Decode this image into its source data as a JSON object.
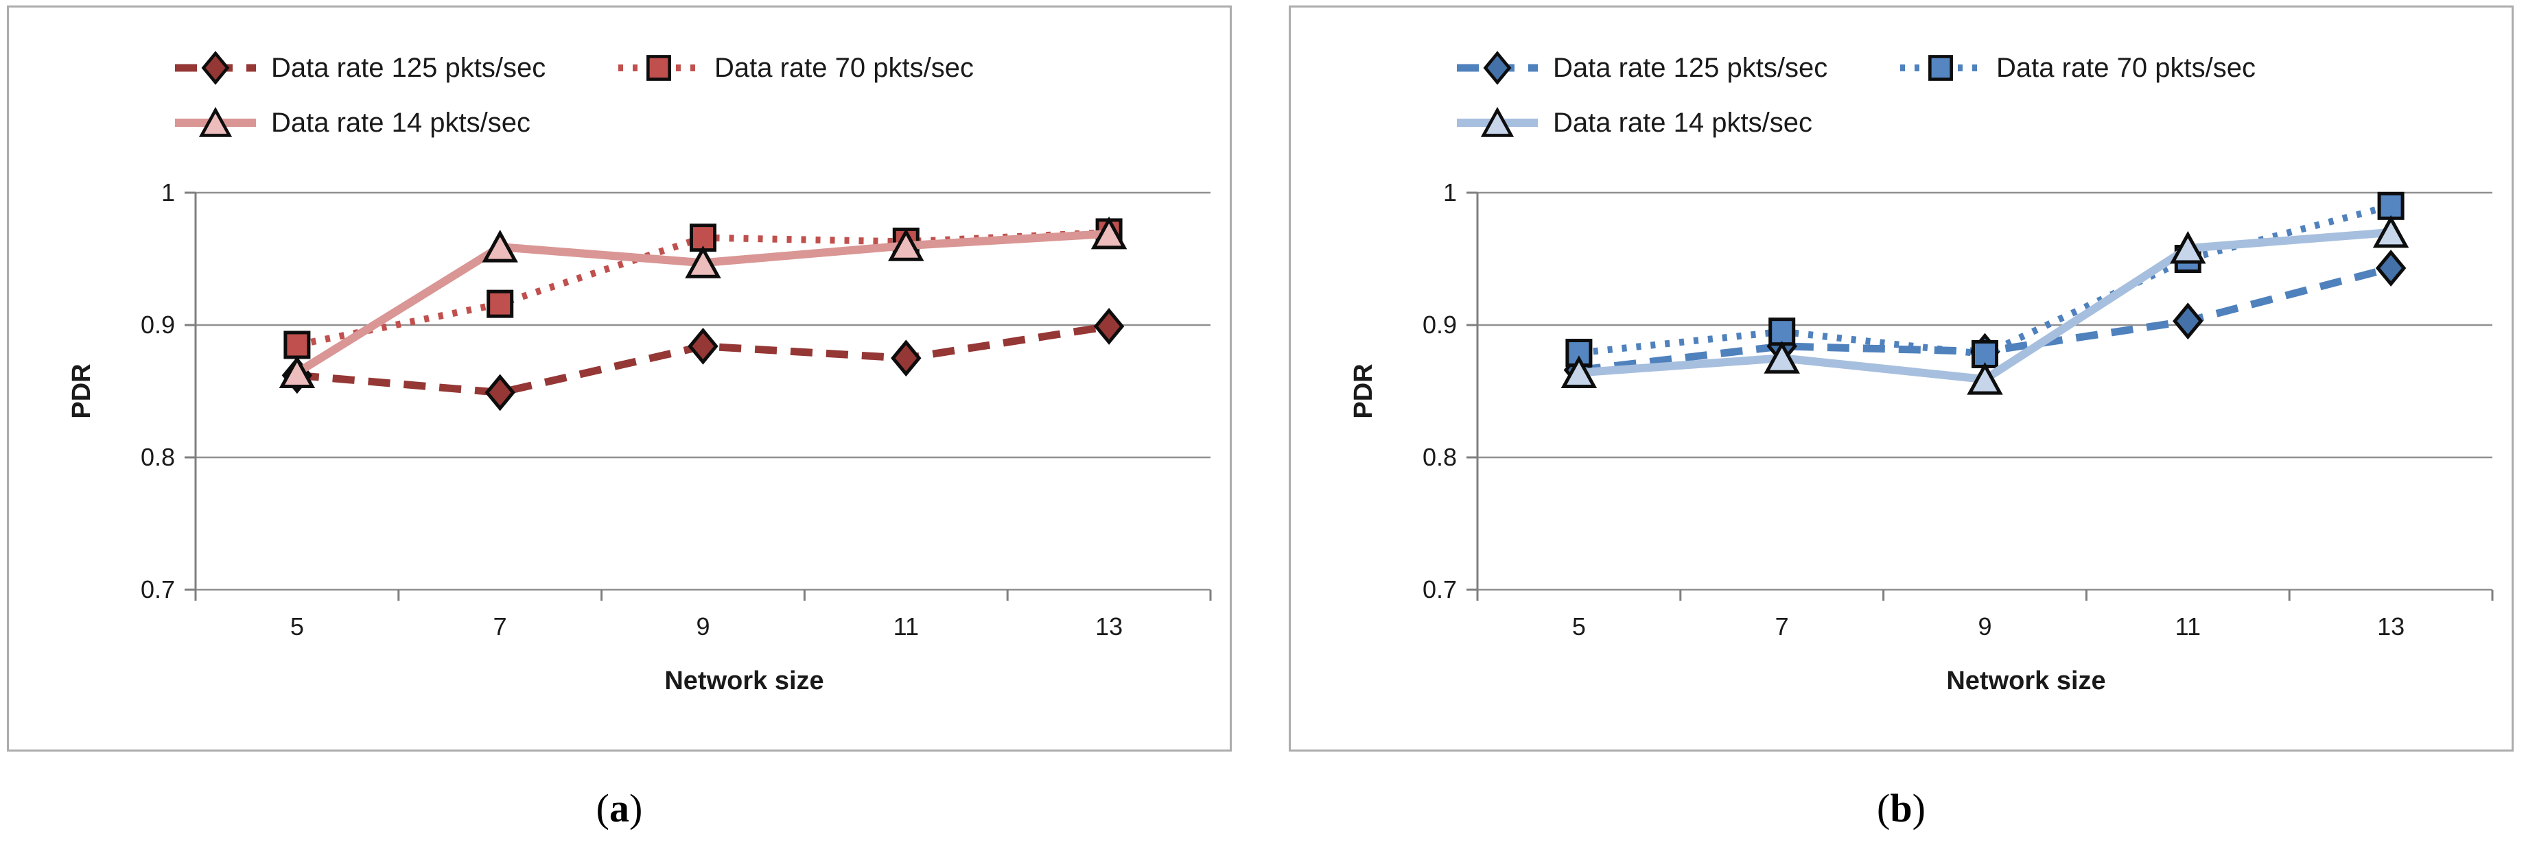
{
  "figure": {
    "captions": [
      {
        "open": "(",
        "letter": "a",
        "close": ")"
      },
      {
        "open": "(",
        "letter": "b",
        "close": ")"
      }
    ]
  },
  "chart_data": [
    {
      "type": "line",
      "panel": "a",
      "xlabel": "Network size",
      "ylabel": "PDR",
      "categories": [
        "5",
        "7",
        "9",
        "11",
        "13"
      ],
      "x_values": [
        5,
        7,
        9,
        11,
        13
      ],
      "ylim": [
        0.7,
        1.0
      ],
      "yticks": [
        1,
        0.9,
        0.8,
        0.7
      ],
      "ytick_labels": [
        "1",
        "0.9",
        "0.8",
        "0.7"
      ],
      "grid": true,
      "legend_position": "top",
      "axis_color": "#7F7F7F",
      "grid_color": "#909090",
      "series": [
        {
          "name": "Data rate 125 pkts/sec",
          "marker": "diamond",
          "line_style": "dashed",
          "color": "#953735",
          "fill": "#953735",
          "values": [
            0.862,
            0.849,
            0.884,
            0.875,
            0.899
          ]
        },
        {
          "name": "Data rate 70 pkts/sec",
          "marker": "square",
          "line_style": "dotted",
          "color": "#C0504D",
          "fill": "#C0504D",
          "values": [
            0.885,
            0.916,
            0.966,
            0.963,
            0.97
          ]
        },
        {
          "name": "Data rate 14 pkts/sec",
          "marker": "triangle",
          "line_style": "solid",
          "color": "#D99694",
          "fill": "#ECBDBC",
          "values": [
            0.864,
            0.959,
            0.947,
            0.96,
            0.969
          ]
        }
      ]
    },
    {
      "type": "line",
      "panel": "b",
      "xlabel": "Network size",
      "ylabel": "PDR",
      "categories": [
        "5",
        "7",
        "9",
        "11",
        "13"
      ],
      "x_values": [
        5,
        7,
        9,
        11,
        13
      ],
      "ylim": [
        0.7,
        1.0
      ],
      "yticks": [
        1,
        0.9,
        0.8,
        0.7
      ],
      "ytick_labels": [
        "1",
        "0.9",
        "0.8",
        "0.7"
      ],
      "grid": true,
      "legend_position": "top",
      "axis_color": "#7F7F7F",
      "grid_color": "#909090",
      "series": [
        {
          "name": "Data rate 125 pkts/sec",
          "marker": "diamond",
          "line_style": "dashed",
          "color": "#4F81BD",
          "fill": "#4472A8",
          "values": [
            0.866,
            0.884,
            0.88,
            0.903,
            0.943
          ]
        },
        {
          "name": "Data rate 70 pkts/sec",
          "marker": "square",
          "line_style": "dotted",
          "color": "#4F81BD",
          "fill": "#5586C2",
          "values": [
            0.879,
            0.895,
            0.878,
            0.95,
            0.99
          ]
        },
        {
          "name": "Data rate 14 pkts/sec",
          "marker": "triangle",
          "line_style": "solid",
          "color": "#A7BFDE",
          "fill": "#C6D5EA",
          "values": [
            0.864,
            0.875,
            0.859,
            0.958,
            0.97
          ]
        }
      ]
    }
  ]
}
